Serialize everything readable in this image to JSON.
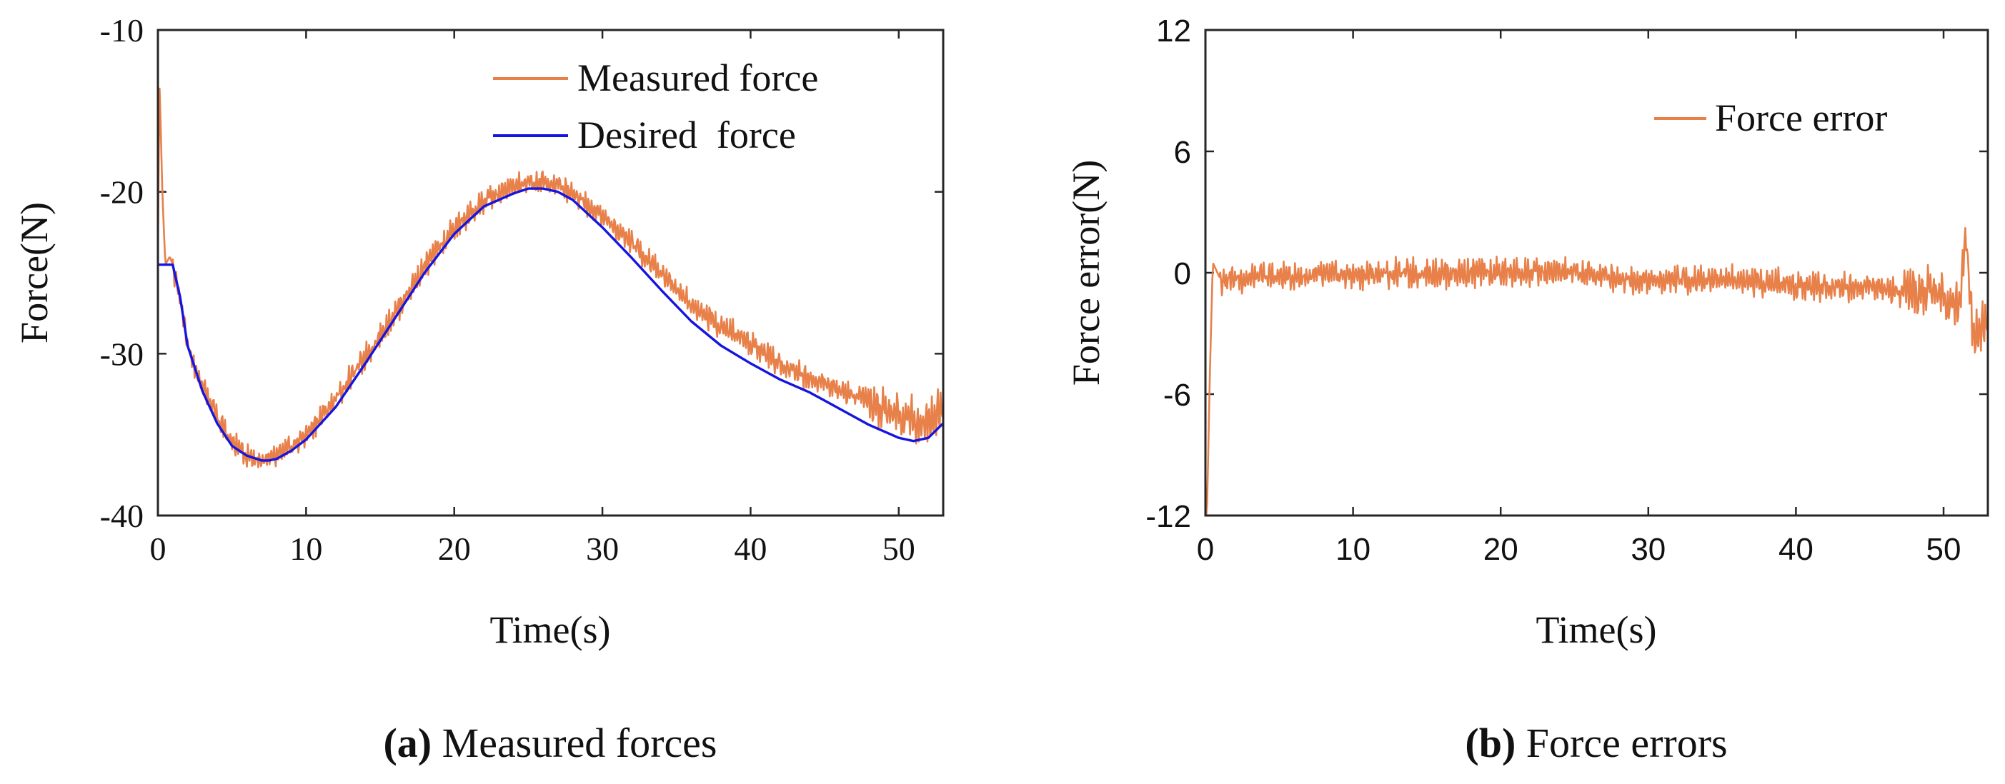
{
  "chart_data": [
    {
      "type": "line",
      "panel": "a",
      "caption_letter": "(a)",
      "caption_text": " Measured forces",
      "xlabel": "Time(s)",
      "ylabel": "Force(N)",
      "xlim": [
        0,
        53
      ],
      "ylim": [
        -40,
        -10
      ],
      "xticks": [
        0,
        10,
        20,
        30,
        40,
        50
      ],
      "yticks": [
        -40,
        -30,
        -20,
        -10
      ],
      "legend_position": "top-right",
      "colors": {
        "measured": "#E8804A",
        "desired": "#1515E0"
      },
      "series": [
        {
          "name": "Measured force",
          "key": "measured",
          "x": [
            0,
            0.1,
            0.3,
            0.5,
            0.8,
            1.0,
            1.5,
            2,
            3,
            4,
            5,
            6,
            7,
            7.5,
            8,
            9,
            10,
            12,
            14,
            16,
            18,
            20,
            22,
            24,
            25,
            26,
            27,
            28,
            30,
            32,
            34,
            36,
            38,
            40,
            42,
            44,
            46,
            48,
            49,
            50,
            51,
            52,
            53
          ],
          "values": [
            -24,
            -13,
            -20,
            -24.5,
            -24,
            -24.5,
            -26.5,
            -29.5,
            -32,
            -34,
            -35.5,
            -36.3,
            -36.6,
            -36.6,
            -36.4,
            -35.8,
            -35,
            -32.8,
            -30.2,
            -27.5,
            -24.6,
            -22.3,
            -20.6,
            -19.7,
            -19.5,
            -19.4,
            -19.6,
            -20,
            -21.5,
            -23.2,
            -25,
            -27,
            -28.3,
            -29.3,
            -30.6,
            -31.5,
            -32.3,
            -33,
            -33.5,
            -33.8,
            -34,
            -34,
            -33.5
          ]
        },
        {
          "name": "Desired  force",
          "key": "desired",
          "x": [
            0,
            0.5,
            1,
            1.5,
            2,
            3,
            4,
            5,
            6,
            7,
            7.5,
            8,
            9,
            10,
            12,
            14,
            16,
            18,
            20,
            22,
            24,
            25,
            26,
            27,
            28,
            30,
            32,
            34,
            36,
            38,
            40,
            42,
            44,
            46,
            48,
            50,
            51,
            52,
            53
          ],
          "values": [
            -24.5,
            -24.5,
            -24.5,
            -26.5,
            -29.5,
            -32.3,
            -34.3,
            -35.7,
            -36.3,
            -36.6,
            -36.6,
            -36.5,
            -36,
            -35.3,
            -33.3,
            -30.6,
            -27.8,
            -25,
            -22.6,
            -20.9,
            -20.1,
            -19.8,
            -19.8,
            -20,
            -20.5,
            -22.2,
            -24.1,
            -26.1,
            -28,
            -29.5,
            -30.6,
            -31.6,
            -32.4,
            -33.4,
            -34.4,
            -35.2,
            -35.4,
            -35.2,
            -34.3
          ]
        }
      ]
    },
    {
      "type": "line",
      "panel": "b",
      "caption_letter": "(b)",
      "caption_text": " Force errors",
      "xlabel": "Time(s)",
      "ylabel": "Force error(N)",
      "xlim": [
        0,
        53
      ],
      "ylim": [
        -12,
        12
      ],
      "xticks": [
        0,
        10,
        20,
        30,
        40,
        50
      ],
      "yticks": [
        -12,
        -6,
        0,
        6,
        12
      ],
      "legend_position": "top-right",
      "colors": {
        "error": "#E8804A"
      },
      "series": [
        {
          "name": "Force error",
          "key": "error",
          "x": [
            0,
            0.1,
            0.3,
            0.5,
            1,
            2,
            4,
            6,
            10,
            15,
            20,
            25,
            30,
            35,
            40,
            45,
            47,
            48,
            49,
            50,
            51,
            51.5,
            52,
            53
          ],
          "values": [
            -12,
            -12,
            -5,
            0.5,
            -0.3,
            -0.3,
            -0.2,
            -0.2,
            -0.1,
            0,
            0,
            0,
            -0.4,
            -0.3,
            -0.6,
            -0.7,
            -1,
            -1.2,
            -0.8,
            -1.2,
            -1.8,
            2.3,
            -3,
            -2.5
          ]
        }
      ]
    }
  ]
}
